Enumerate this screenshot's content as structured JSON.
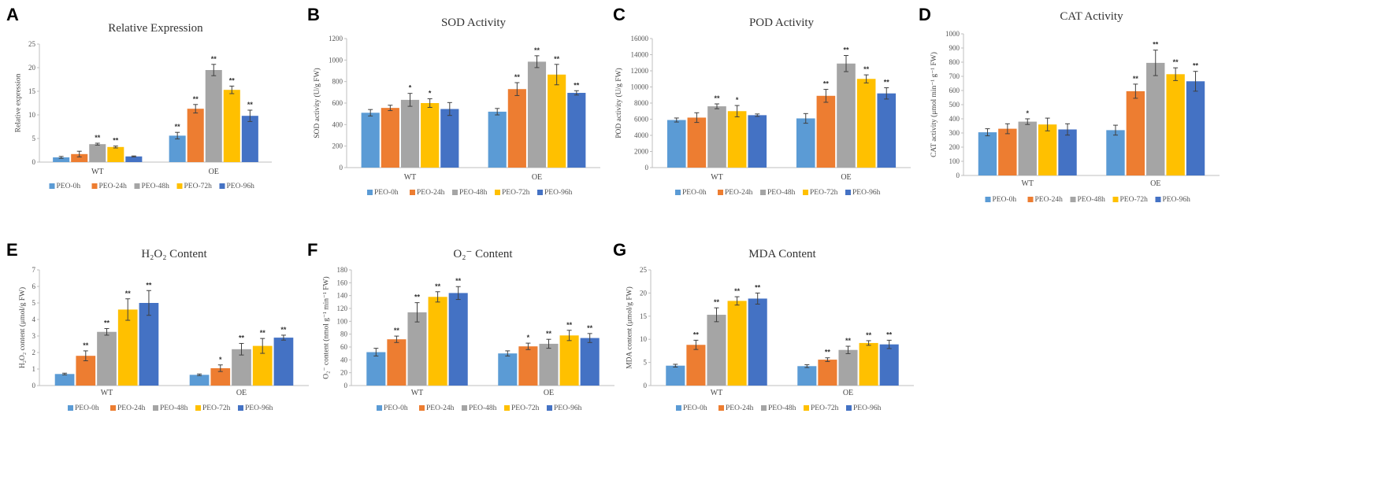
{
  "colors": [
    "#5B9BD5",
    "#ED7D31",
    "#A5A5A5",
    "#FFC000",
    "#4472C4"
  ],
  "series_names": [
    "PEO-0h",
    "PEO-24h",
    "PEO-48h",
    "PEO-72h",
    "PEO-96h"
  ],
  "chart_data": [
    {
      "letter": "A",
      "type": "bar",
      "title": "Relative Expression",
      "ylabel": "Relative expression",
      "ylim": [
        0,
        25
      ],
      "ticks": [
        0,
        5,
        10,
        15,
        20,
        25
      ],
      "categories": [
        "WT",
        "OE"
      ],
      "series": [
        {
          "name": "PEO-0h",
          "values": [
            1.0,
            5.6
          ],
          "errors": [
            0.2,
            0.7
          ],
          "sig": [
            "",
            "**"
          ]
        },
        {
          "name": "PEO-24h",
          "values": [
            1.7,
            11.3
          ],
          "errors": [
            0.6,
            0.9
          ],
          "sig": [
            "",
            "**"
          ]
        },
        {
          "name": "PEO-48h",
          "values": [
            3.8,
            19.5
          ],
          "errors": [
            0.2,
            1.2
          ],
          "sig": [
            "**",
            "**"
          ]
        },
        {
          "name": "PEO-72h",
          "values": [
            3.2,
            15.3
          ],
          "errors": [
            0.2,
            0.8
          ],
          "sig": [
            "**",
            "**"
          ]
        },
        {
          "name": "PEO-96h",
          "values": [
            1.2,
            9.8
          ],
          "errors": [
            0.1,
            1.2
          ],
          "sig": [
            "",
            "**"
          ]
        }
      ]
    },
    {
      "letter": "B",
      "type": "bar",
      "title": "SOD Activity",
      "ylabel": "SOD activity (U/g FW)",
      "ylim": [
        0,
        1200
      ],
      "ticks": [
        0,
        200,
        400,
        600,
        800,
        1000,
        1200
      ],
      "categories": [
        "WT",
        "OE"
      ],
      "series": [
        {
          "name": "PEO-0h",
          "values": [
            510,
            520
          ],
          "errors": [
            30,
            30
          ],
          "sig": [
            "",
            ""
          ]
        },
        {
          "name": "PEO-24h",
          "values": [
            555,
            730
          ],
          "errors": [
            25,
            60
          ],
          "sig": [
            "",
            "**"
          ]
        },
        {
          "name": "PEO-48h",
          "values": [
            630,
            985
          ],
          "errors": [
            60,
            55
          ],
          "sig": [
            "*",
            "**"
          ]
        },
        {
          "name": "PEO-72h",
          "values": [
            600,
            865
          ],
          "errors": [
            40,
            95
          ],
          "sig": [
            "*",
            "**"
          ]
        },
        {
          "name": "PEO-96h",
          "values": [
            545,
            695
          ],
          "errors": [
            60,
            20
          ],
          "sig": [
            "",
            "**"
          ]
        }
      ]
    },
    {
      "letter": "C",
      "type": "bar",
      "title": "POD Activity",
      "ylabel": "POD activity (U/g FW)",
      "ylim": [
        0,
        16000
      ],
      "ticks": [
        0,
        2000,
        4000,
        6000,
        8000,
        10000,
        12000,
        14000,
        16000
      ],
      "categories": [
        "WT",
        "OE"
      ],
      "series": [
        {
          "name": "PEO-0h",
          "values": [
            5900,
            6100
          ],
          "errors": [
            250,
            600
          ],
          "sig": [
            "",
            ""
          ]
        },
        {
          "name": "PEO-24h",
          "values": [
            6200,
            8900
          ],
          "errors": [
            600,
            800
          ],
          "sig": [
            "",
            "**"
          ]
        },
        {
          "name": "PEO-48h",
          "values": [
            7600,
            12900
          ],
          "errors": [
            300,
            1000
          ],
          "sig": [
            "**",
            "**"
          ]
        },
        {
          "name": "PEO-72h",
          "values": [
            7000,
            11000
          ],
          "errors": [
            700,
            500
          ],
          "sig": [
            "*",
            "**"
          ]
        },
        {
          "name": "PEO-96h",
          "values": [
            6500,
            9200
          ],
          "errors": [
            150,
            700
          ],
          "sig": [
            "",
            "**"
          ]
        }
      ]
    },
    {
      "letter": "D",
      "type": "bar",
      "title": "CAT Activity",
      "ylabel": "CAT activity (μmol min⁻¹ g⁻¹ FW)",
      "ylim": [
        0,
        1000
      ],
      "ticks": [
        0,
        100,
        200,
        300,
        400,
        500,
        600,
        700,
        800,
        900,
        1000
      ],
      "categories": [
        "WT",
        "OE"
      ],
      "series": [
        {
          "name": "PEO-0h",
          "values": [
            305,
            320
          ],
          "errors": [
            25,
            35
          ],
          "sig": [
            "",
            ""
          ]
        },
        {
          "name": "PEO-24h",
          "values": [
            330,
            595
          ],
          "errors": [
            35,
            50
          ],
          "sig": [
            "",
            "**"
          ]
        },
        {
          "name": "PEO-48h",
          "values": [
            380,
            795
          ],
          "errors": [
            20,
            90
          ],
          "sig": [
            "*",
            "**"
          ]
        },
        {
          "name": "PEO-72h",
          "values": [
            360,
            715
          ],
          "errors": [
            45,
            45
          ],
          "sig": [
            "",
            "**"
          ]
        },
        {
          "name": "PEO-96h",
          "values": [
            325,
            665
          ],
          "errors": [
            40,
            70
          ],
          "sig": [
            "",
            "**"
          ]
        }
      ]
    },
    {
      "letter": "E",
      "type": "bar",
      "title": "H₂O₂ Content",
      "ylabel": "H₂O₂ content (μmol/g FW)",
      "ylim": [
        0,
        7
      ],
      "ticks": [
        0,
        1,
        2,
        3,
        4,
        5,
        6,
        7
      ],
      "categories": [
        "WT",
        "OE"
      ],
      "series": [
        {
          "name": "PEO-0h",
          "values": [
            0.7,
            0.65
          ],
          "errors": [
            0.05,
            0.05
          ],
          "sig": [
            "",
            ""
          ]
        },
        {
          "name": "PEO-24h",
          "values": [
            1.8,
            1.05
          ],
          "errors": [
            0.3,
            0.2
          ],
          "sig": [
            "**",
            "*"
          ]
        },
        {
          "name": "PEO-48h",
          "values": [
            3.25,
            2.2
          ],
          "errors": [
            0.2,
            0.35
          ],
          "sig": [
            "**",
            "**"
          ]
        },
        {
          "name": "PEO-72h",
          "values": [
            4.6,
            2.4
          ],
          "errors": [
            0.65,
            0.45
          ],
          "sig": [
            "**",
            "**"
          ]
        },
        {
          "name": "PEO-96h",
          "values": [
            5.0,
            2.9
          ],
          "errors": [
            0.75,
            0.15
          ],
          "sig": [
            "**",
            "**"
          ]
        }
      ]
    },
    {
      "letter": "F",
      "type": "bar",
      "title": "O₂⁻ Content",
      "ylabel": "O₂⁻ content (nmol g⁻¹ min⁻¹ FW)",
      "ylim": [
        0,
        180
      ],
      "ticks": [
        0,
        20,
        40,
        60,
        80,
        100,
        120,
        140,
        160,
        180
      ],
      "categories": [
        "WT",
        "OE"
      ],
      "series": [
        {
          "name": "PEO-0h",
          "values": [
            52,
            50
          ],
          "errors": [
            6,
            4
          ],
          "sig": [
            "",
            ""
          ]
        },
        {
          "name": "PEO-24h",
          "values": [
            72,
            61
          ],
          "errors": [
            5,
            5
          ],
          "sig": [
            "**",
            "*"
          ]
        },
        {
          "name": "PEO-48h",
          "values": [
            114,
            65
          ],
          "errors": [
            15,
            7
          ],
          "sig": [
            "**",
            "**"
          ]
        },
        {
          "name": "PEO-72h",
          "values": [
            138,
            78
          ],
          "errors": [
            8,
            8
          ],
          "sig": [
            "**",
            "**"
          ]
        },
        {
          "name": "PEO-96h",
          "values": [
            144,
            74
          ],
          "errors": [
            10,
            7
          ],
          "sig": [
            "**",
            "**"
          ]
        }
      ]
    },
    {
      "letter": "G",
      "type": "bar",
      "title": "MDA Content",
      "ylabel": "MDA content (μmol/g FW)",
      "ylim": [
        0,
        25
      ],
      "ticks": [
        0,
        5,
        10,
        15,
        20,
        25
      ],
      "categories": [
        "WT",
        "OE"
      ],
      "series": [
        {
          "name": "PEO-0h",
          "values": [
            4.3,
            4.2
          ],
          "errors": [
            0.3,
            0.3
          ],
          "sig": [
            "",
            ""
          ]
        },
        {
          "name": "PEO-24h",
          "values": [
            8.8,
            5.6
          ],
          "errors": [
            1.0,
            0.4
          ],
          "sig": [
            "**",
            "**"
          ]
        },
        {
          "name": "PEO-48h",
          "values": [
            15.3,
            7.7
          ],
          "errors": [
            1.5,
            0.8
          ],
          "sig": [
            "**",
            "**"
          ]
        },
        {
          "name": "PEO-72h",
          "values": [
            18.3,
            9.2
          ],
          "errors": [
            0.9,
            0.5
          ],
          "sig": [
            "**",
            "**"
          ]
        },
        {
          "name": "PEO-96h",
          "values": [
            18.8,
            8.9
          ],
          "errors": [
            1.2,
            0.9
          ],
          "sig": [
            "**",
            "**"
          ]
        }
      ]
    }
  ]
}
